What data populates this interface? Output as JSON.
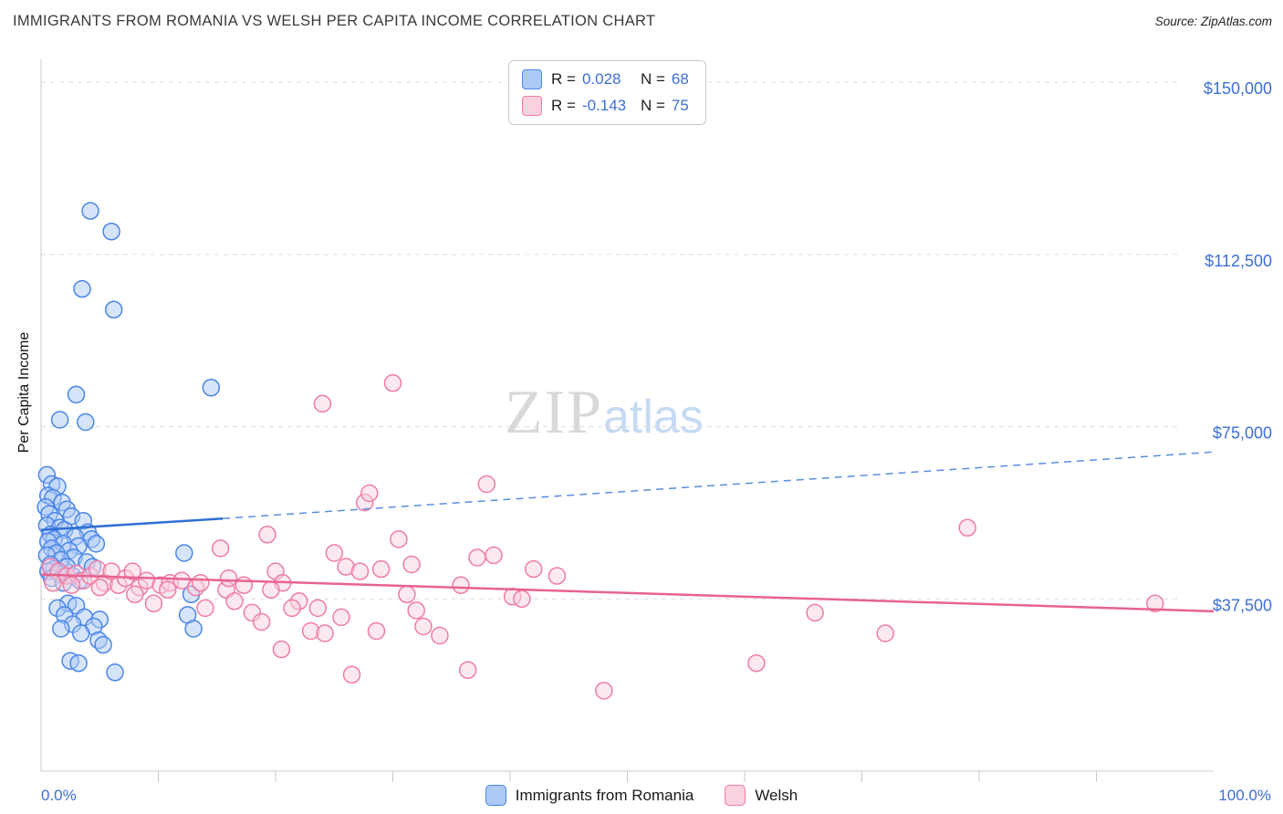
{
  "header": {
    "title": "IMMIGRANTS FROM ROMANIA VS WELSH PER CAPITA INCOME CORRELATION CHART",
    "source": "Source: ZipAtlas.com"
  },
  "watermark": {
    "part1": "ZIP",
    "part2": "atlas"
  },
  "legend_box": {
    "rows": [
      {
        "r_label": "R =",
        "r_value": "0.028",
        "n_label": "N =",
        "n_value": "68"
      },
      {
        "r_label": "R =",
        "r_value": "-0.143",
        "n_label": "N =",
        "n_value": "75"
      }
    ]
  },
  "legend": {
    "items": [
      {
        "label": "Immigrants from Romania"
      },
      {
        "label": "Welsh"
      }
    ]
  },
  "chart_data": {
    "type": "scatter",
    "title": "IMMIGRANTS FROM ROMANIA VS WELSH PER CAPITA INCOME CORRELATION CHART",
    "ylabel": "Per Capita Income",
    "x_axis": {
      "min": 0,
      "max": 100,
      "left_label": "0.0%",
      "right_label": "100.0%"
    },
    "y_axis": {
      "min": 0,
      "max": 155000,
      "label_color": "#3d6fd4",
      "ticks": [
        {
          "value": 37500,
          "label": "$37,500"
        },
        {
          "value": 75000,
          "label": "$75,000"
        },
        {
          "value": 112500,
          "label": "$112,500"
        },
        {
          "value": 150000,
          "label": "$150,000"
        }
      ]
    },
    "series": [
      {
        "id": "romania",
        "name": "Immigrants from Romania",
        "color": "#4a86e8",
        "fill": "#adc9f5",
        "r": 0.028,
        "n": 68,
        "points": [
          [
            4.2,
            122000
          ],
          [
            6.0,
            117500
          ],
          [
            3.5,
            105000
          ],
          [
            6.2,
            100500
          ],
          [
            3.0,
            82000
          ],
          [
            14.5,
            83500
          ],
          [
            1.6,
            76500
          ],
          [
            3.8,
            76000
          ],
          [
            0.5,
            64500
          ],
          [
            0.9,
            62500
          ],
          [
            1.4,
            62000
          ],
          [
            0.6,
            60000
          ],
          [
            1.0,
            59500
          ],
          [
            1.8,
            58500
          ],
          [
            0.4,
            57500
          ],
          [
            2.2,
            57000
          ],
          [
            0.7,
            56000
          ],
          [
            2.6,
            55500
          ],
          [
            1.2,
            54500
          ],
          [
            3.6,
            54500
          ],
          [
            0.5,
            53500
          ],
          [
            1.6,
            53000
          ],
          [
            2.0,
            52500
          ],
          [
            4.0,
            52000
          ],
          [
            0.8,
            51500
          ],
          [
            2.9,
            51000
          ],
          [
            1.1,
            50500
          ],
          [
            4.3,
            50500
          ],
          [
            0.6,
            50000
          ],
          [
            1.9,
            49500
          ],
          [
            3.2,
            49000
          ],
          [
            4.7,
            49500
          ],
          [
            0.9,
            48500
          ],
          [
            2.4,
            48000
          ],
          [
            1.3,
            47500
          ],
          [
            12.2,
            47500
          ],
          [
            0.5,
            47000
          ],
          [
            2.8,
            46500
          ],
          [
            1.7,
            46000
          ],
          [
            3.9,
            45500
          ],
          [
            0.8,
            45000
          ],
          [
            2.2,
            44500
          ],
          [
            1.1,
            44000
          ],
          [
            4.4,
            44500
          ],
          [
            0.6,
            43500
          ],
          [
            1.5,
            43000
          ],
          [
            2.7,
            42500
          ],
          [
            0.9,
            42000
          ],
          [
            3.3,
            41500
          ],
          [
            1.9,
            41000
          ],
          [
            12.8,
            38500
          ],
          [
            2.3,
            36500
          ],
          [
            3.0,
            36000
          ],
          [
            1.4,
            35500
          ],
          [
            12.5,
            34000
          ],
          [
            2.0,
            34000
          ],
          [
            3.7,
            33500
          ],
          [
            5.0,
            33000
          ],
          [
            2.7,
            32000
          ],
          [
            4.5,
            31500
          ],
          [
            1.7,
            31000
          ],
          [
            13.0,
            31000
          ],
          [
            3.4,
            30000
          ],
          [
            4.9,
            28500
          ],
          [
            5.3,
            27500
          ],
          [
            2.5,
            24000
          ],
          [
            3.2,
            23500
          ],
          [
            6.3,
            21500
          ]
        ]
      },
      {
        "id": "welsh",
        "name": "Welsh",
        "color": "#ee7ca6",
        "fill": "#fad1e0",
        "r": -0.143,
        "n": 75,
        "points": [
          [
            0.8,
            44500
          ],
          [
            1.5,
            43500
          ],
          [
            2.2,
            42500
          ],
          [
            3.0,
            43000
          ],
          [
            3.6,
            41500
          ],
          [
            4.2,
            42500
          ],
          [
            4.8,
            44000
          ],
          [
            5.4,
            41000
          ],
          [
            6.0,
            43500
          ],
          [
            6.6,
            40500
          ],
          [
            7.2,
            42000
          ],
          [
            7.8,
            43500
          ],
          [
            8.4,
            40000
          ],
          [
            9.0,
            41500
          ],
          [
            9.6,
            36500
          ],
          [
            10.2,
            40500
          ],
          [
            11.0,
            41000
          ],
          [
            12.0,
            41500
          ],
          [
            13.2,
            40000
          ],
          [
            14.0,
            35500
          ],
          [
            15.3,
            48500
          ],
          [
            15.8,
            39500
          ],
          [
            16.5,
            37000
          ],
          [
            17.3,
            40500
          ],
          [
            18.0,
            34500
          ],
          [
            18.8,
            32500
          ],
          [
            19.3,
            51500
          ],
          [
            20.0,
            43500
          ],
          [
            20.6,
            41000
          ],
          [
            20.5,
            26500
          ],
          [
            22.0,
            37000
          ],
          [
            23.0,
            30500
          ],
          [
            23.6,
            35500
          ],
          [
            24.2,
            30000
          ],
          [
            24.0,
            80000
          ],
          [
            25.0,
            47500
          ],
          [
            26.0,
            44500
          ],
          [
            26.5,
            21000
          ],
          [
            27.2,
            43500
          ],
          [
            27.6,
            58500
          ],
          [
            28.0,
            60500
          ],
          [
            29.0,
            44000
          ],
          [
            30.0,
            84500
          ],
          [
            30.5,
            50500
          ],
          [
            31.2,
            38500
          ],
          [
            32.0,
            35000
          ],
          [
            32.6,
            31500
          ],
          [
            34.0,
            29500
          ],
          [
            35.8,
            40500
          ],
          [
            36.4,
            22000
          ],
          [
            38.0,
            62500
          ],
          [
            38.6,
            47000
          ],
          [
            40.2,
            38000
          ],
          [
            41.0,
            37500
          ],
          [
            44.0,
            42500
          ],
          [
            48.0,
            17500
          ],
          [
            61.0,
            23500
          ],
          [
            66.0,
            34500
          ],
          [
            72.0,
            30000
          ],
          [
            79.0,
            53000
          ],
          [
            95.0,
            36500
          ],
          [
            1.0,
            41000
          ],
          [
            2.6,
            40500
          ],
          [
            5.0,
            40000
          ],
          [
            8.0,
            38500
          ],
          [
            10.8,
            39500
          ],
          [
            13.6,
            41000
          ],
          [
            16.0,
            42000
          ],
          [
            19.6,
            39500
          ],
          [
            21.4,
            35500
          ],
          [
            25.6,
            33500
          ],
          [
            28.6,
            30500
          ],
          [
            31.6,
            45000
          ],
          [
            37.2,
            46500
          ],
          [
            42.0,
            44000
          ]
        ]
      }
    ],
    "trend_lines": [
      {
        "series": "Immigrants from Romania",
        "style": "solid",
        "from": [
          0,
          52500
        ],
        "to": [
          15.5,
          55000
        ],
        "color": "#2f6fd6",
        "width": 2.5
      },
      {
        "series": "Immigrants from Romania",
        "style": "dashed",
        "from": [
          15.5,
          55000
        ],
        "to": [
          100,
          69500
        ],
        "color": "#5b8ee0",
        "width": 1.5
      },
      {
        "series": "Welsh",
        "style": "solid",
        "from": [
          0,
          42800
        ],
        "to": [
          100,
          34800
        ],
        "color": "#e8638f",
        "width": 2.5
      }
    ]
  }
}
